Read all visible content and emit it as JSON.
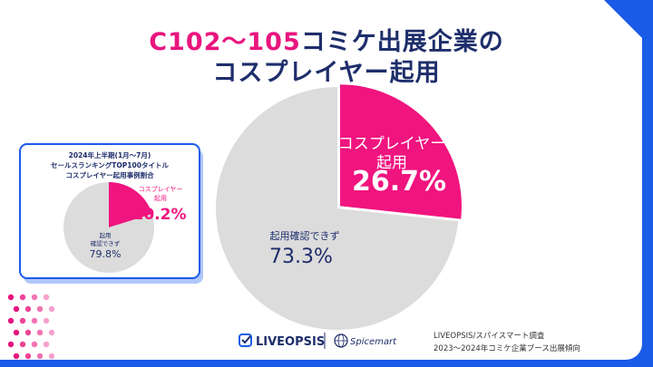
{
  "title": {
    "line1_accent": "C102〜105",
    "line1_rest": "コミケ出展企業の",
    "line2": "コスプレイヤー起用"
  },
  "chart_data": [
    {
      "type": "pie",
      "title": "",
      "slices": [
        {
          "label_lines": [
            "コスプレイヤー",
            "起用"
          ],
          "value": 26.7,
          "value_text": "26.7%",
          "color": "#f0147f"
        },
        {
          "label_lines": [
            "起用確認できず"
          ],
          "value": 73.3,
          "value_text": "73.3%",
          "color": "#dcdcdc"
        }
      ]
    },
    {
      "type": "pie",
      "title_lines": [
        "2024年上半期(1月〜7月)",
        "セールスランキングTOP100タイトル",
        "コスプレイヤー起用事例割合"
      ],
      "slices": [
        {
          "label_lines": [
            "コスプレイヤー",
            "起用"
          ],
          "value": 20.2,
          "value_text": "20.2%",
          "color": "#f0147f"
        },
        {
          "label_lines": [
            "起用",
            "確認できず"
          ],
          "value": 79.8,
          "value_text": "79.8%",
          "color": "#dcdcdc"
        }
      ]
    }
  ],
  "footer": {
    "brand_liveopsis": "LIVEOPSIS",
    "brand_spicemart": "Spicemart",
    "source_line1": "LIVEOPSIS/スパイスマート調査",
    "source_line2": "2023〜2024年コミケ企業ブース出展傾向"
  },
  "colors": {
    "accent": "#f0147f",
    "navy": "#1e2e6b",
    "frame": "#1a5be8"
  }
}
